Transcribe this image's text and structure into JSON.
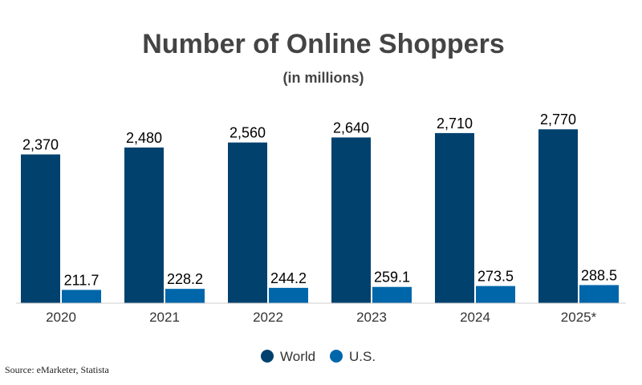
{
  "chart_data": {
    "type": "bar",
    "title": "Number of Online Shoppers",
    "subtitle": "(in millions)",
    "categories": [
      "2020",
      "2021",
      "2022",
      "2023",
      "2024",
      "2025*"
    ],
    "series": [
      {
        "name": "World",
        "color": "#00416e",
        "values": [
          2370,
          2480,
          2560,
          2640,
          2710,
          2770
        ],
        "labels": [
          "2,370",
          "2,480",
          "2,560",
          "2,640",
          "2,710",
          "2,770"
        ]
      },
      {
        "name": "U.S.",
        "color": "#0066aa",
        "values": [
          211.7,
          228.2,
          244.2,
          259.1,
          273.5,
          288.5
        ],
        "labels": [
          "211.7",
          "228.2",
          "244.2",
          "259.1",
          "273.5",
          "288.5"
        ]
      }
    ],
    "ylim": [
      0,
      3450
    ],
    "legend_position": "bottom",
    "grid": false
  },
  "source": "Source: eMarketer, Statista"
}
